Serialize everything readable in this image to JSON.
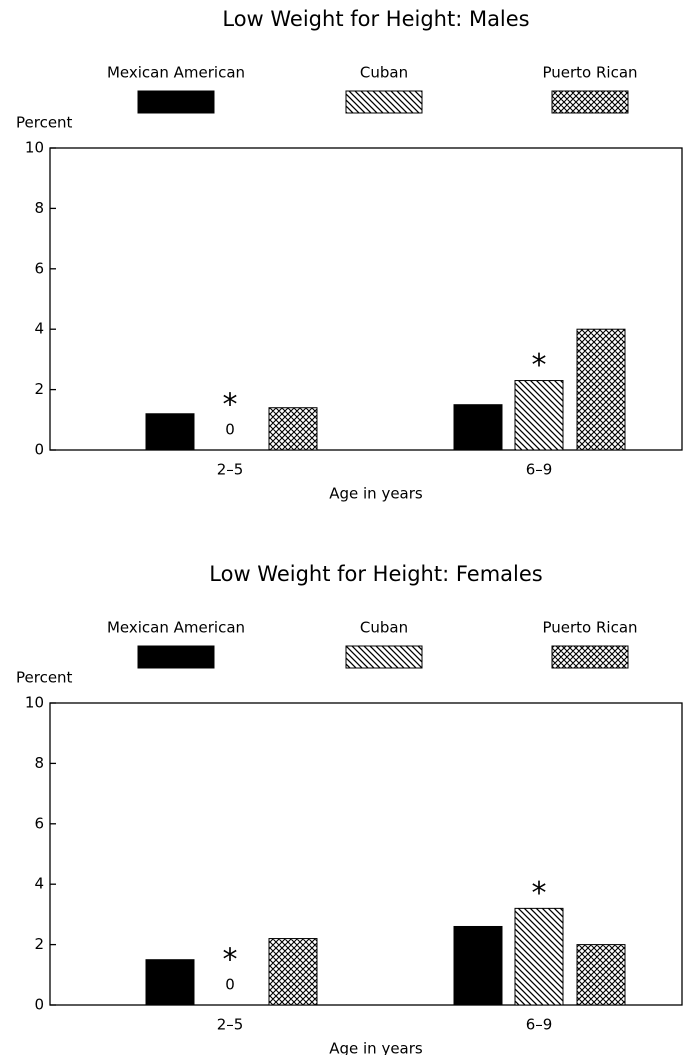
{
  "chart_data": [
    {
      "type": "bar",
      "title": "Low Weight for Height: Males",
      "y_label": "Percent",
      "x_label": "Age in years",
      "categories": [
        "2–5",
        "6–9"
      ],
      "series": [
        {
          "name": "Mexican American",
          "color": "#000000",
          "pattern": "solid",
          "values": [
            1.2,
            1.5
          ]
        },
        {
          "name": "Cuban",
          "color": "#000000",
          "pattern": "diagonal",
          "values": [
            0,
            2.3
          ],
          "markers": [
            "*",
            "*"
          ]
        },
        {
          "name": "Puerto Rican",
          "color": "#000000",
          "pattern": "crosshatch",
          "values": [
            1.4,
            4.0
          ]
        }
      ],
      "ylim": [
        0,
        10
      ],
      "yticks": [
        0,
        2,
        4,
        6,
        8,
        10
      ],
      "legend": "top"
    },
    {
      "type": "bar",
      "title": "Low Weight for Height: Females",
      "y_label": "Percent",
      "x_label": "Age in years",
      "categories": [
        "2–5",
        "6–9"
      ],
      "series": [
        {
          "name": "Mexican American",
          "color": "#000000",
          "pattern": "solid",
          "values": [
            1.5,
            2.6
          ]
        },
        {
          "name": "Cuban",
          "color": "#000000",
          "pattern": "diagonal",
          "values": [
            0,
            3.2
          ],
          "markers": [
            "*",
            "*"
          ]
        },
        {
          "name": "Puerto Rican",
          "color": "#000000",
          "pattern": "crosshatch",
          "values": [
            2.2,
            2.0
          ]
        }
      ],
      "ylim": [
        0,
        10
      ],
      "yticks": [
        0,
        2,
        4,
        6,
        8,
        10
      ],
      "legend": "top"
    }
  ]
}
